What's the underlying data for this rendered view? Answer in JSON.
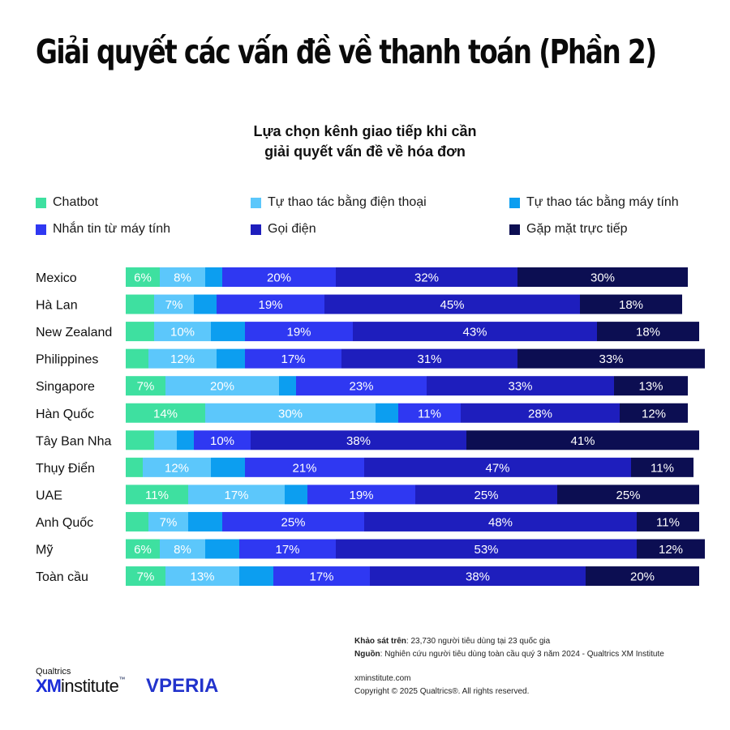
{
  "title": "Giải quyết các vấn đề về thanh toán (Phần 2)",
  "colors": {
    "Chatbot": "#3ee0a0",
    "Tự thao tác bằng điện thoại": "#5cc7fb",
    "Tự thao tác bằng máy tính": "#0c9ef0",
    "Nhắn tin từ máy tính": "#2f38f2",
    "Gọi điện": "#1e1ebd",
    "Gặp mặt trực tiếp": "#0c0e52"
  },
  "chart_data": {
    "type": "bar",
    "orientation": "horizontal",
    "stacked": true,
    "title_lines": [
      "Lựa chọn kênh giao tiếp khi cần",
      "giải quyết vấn đề về hóa đơn"
    ],
    "legend_position": "top",
    "xlim": [
      0,
      100
    ],
    "categories": [
      "Mexico",
      "Hà Lan",
      "New Zealand",
      "Philippines",
      "Singapore",
      "Hàn Quốc",
      "Tây Ban Nha",
      "Thụy Điển",
      "UAE",
      "Anh Quốc",
      "Mỹ",
      "Toàn cầu"
    ],
    "series": [
      {
        "name": "Chatbot",
        "values": [
          6,
          5,
          5,
          4,
          7,
          14,
          5,
          3,
          11,
          4,
          6,
          7
        ]
      },
      {
        "name": "Tự thao tác bằng điện thoại",
        "values": [
          8,
          7,
          10,
          12,
          20,
          30,
          4,
          12,
          17,
          7,
          8,
          13
        ]
      },
      {
        "name": "Tự thao tác bằng máy tính",
        "values": [
          3,
          4,
          6,
          5,
          3,
          4,
          3,
          6,
          4,
          6,
          6,
          6
        ]
      },
      {
        "name": "Nhắn tin từ máy tính",
        "values": [
          20,
          19,
          19,
          17,
          23,
          11,
          10,
          21,
          19,
          25,
          17,
          17
        ]
      },
      {
        "name": "Gọi điện",
        "values": [
          32,
          45,
          43,
          31,
          33,
          28,
          38,
          47,
          25,
          48,
          53,
          38
        ]
      },
      {
        "name": "Gặp mặt trực tiếp",
        "values": [
          30,
          18,
          18,
          33,
          13,
          12,
          41,
          11,
          25,
          11,
          12,
          20
        ]
      }
    ],
    "data_labels": [
      [
        "6%",
        "8%",
        "",
        "20%",
        "32%",
        "30%"
      ],
      [
        "",
        "7%",
        "",
        "19%",
        "45%",
        "18%"
      ],
      [
        "",
        "10%",
        "",
        "19%",
        "43%",
        "18%"
      ],
      [
        "",
        "12%",
        "",
        "17%",
        "31%",
        "33%"
      ],
      [
        "7%",
        "20%",
        "",
        "23%",
        "33%",
        "13%"
      ],
      [
        "14%",
        "30%",
        "",
        "11%",
        "28%",
        "12%"
      ],
      [
        "",
        "",
        "",
        "10%",
        "38%",
        "41%"
      ],
      [
        "",
        "12%",
        "",
        "21%",
        "47%",
        "11%"
      ],
      [
        "11%",
        "17%",
        "",
        "19%",
        "25%",
        "25%"
      ],
      [
        "",
        "7%",
        "",
        "25%",
        "48%",
        "11%"
      ],
      [
        "6%",
        "8%",
        "",
        "17%",
        "53%",
        "12%"
      ],
      [
        "7%",
        "13%",
        "",
        "17%",
        "38%",
        "20%"
      ]
    ]
  },
  "footer": {
    "survey_label": "Khảo sát trên",
    "survey_value": ": 23,730 người tiêu dùng tại 23 quốc gia",
    "source_label": "Nguồn",
    "source_value": ": Nghiên cứu người tiêu dùng toàn cầu quý 3 năm 2024 - Qualtrics XM Institute",
    "website": "xminstitute.com",
    "copyright": "Copyright © 2025 Qualtrics®. All rights reserved."
  },
  "logos": {
    "qualtrics": "Qualtrics",
    "xm": "XM",
    "institute": "institute",
    "tm": "™",
    "vperia": "VPERIA"
  }
}
